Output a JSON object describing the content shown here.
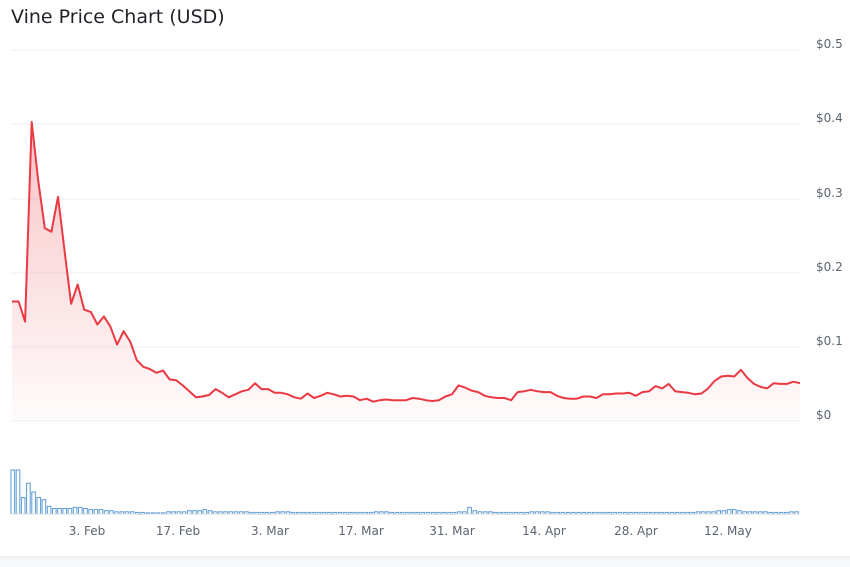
{
  "title": "Vine Price Chart (USD)",
  "chart_data": {
    "type": "area",
    "title": "Vine Price Chart (USD)",
    "xlabel": "",
    "ylabel": "",
    "ylim": [
      0,
      0.5
    ],
    "y_ticks": [
      "$0",
      "$0.1",
      "$0.2",
      "$0.3",
      "$0.4",
      "$0.5"
    ],
    "x_ticks": [
      "3. Feb",
      "17. Feb",
      "3. Mar",
      "17. Mar",
      "31. Mar",
      "14. Apr",
      "28. Apr",
      "12. May"
    ],
    "grid": true,
    "series": [
      {
        "values": [
          0.161,
          0.161,
          0.134,
          0.403,
          0.323,
          0.26,
          0.255,
          0.302,
          0.23,
          0.158,
          0.184,
          0.15,
          0.147,
          0.13,
          0.141,
          0.127,
          0.103,
          0.121,
          0.107,
          0.082,
          0.073,
          0.07,
          0.065,
          0.068,
          0.056,
          0.055,
          0.048,
          0.04,
          0.032,
          0.033,
          0.035,
          0.043,
          0.038,
          0.032,
          0.036,
          0.04,
          0.042,
          0.051,
          0.043,
          0.043,
          0.038,
          0.038,
          0.036,
          0.032,
          0.03,
          0.037,
          0.031,
          0.034,
          0.038,
          0.036,
          0.033,
          0.034,
          0.033,
          0.028,
          0.03,
          0.026,
          0.028,
          0.029,
          0.028,
          0.028,
          0.028,
          0.031,
          0.03,
          0.028,
          0.027,
          0.028,
          0.033,
          0.036,
          0.048,
          0.045,
          0.041,
          0.039,
          0.034,
          0.032,
          0.031,
          0.031,
          0.028,
          0.039,
          0.04,
          0.042,
          0.04,
          0.039,
          0.039,
          0.034,
          0.031,
          0.03,
          0.03,
          0.033,
          0.033,
          0.031,
          0.036,
          0.036,
          0.037,
          0.037,
          0.038,
          0.034,
          0.039,
          0.04,
          0.047,
          0.044,
          0.05,
          0.04,
          0.039,
          0.038,
          0.036,
          0.037,
          0.044,
          0.054,
          0.06,
          0.061,
          0.06,
          0.069,
          0.058,
          0.05,
          0.046,
          0.044,
          0.051,
          0.05,
          0.05,
          0.053,
          0.051
        ],
        "color": "#ea3943"
      },
      {
        "values": [
          40,
          40,
          15,
          28,
          20,
          15,
          13,
          7,
          5,
          5,
          5,
          5,
          6,
          6,
          5,
          4,
          4,
          4,
          3,
          3,
          2,
          2,
          2,
          2,
          1.5,
          1.5,
          1,
          1,
          1,
          1,
          2,
          2,
          2,
          2,
          3,
          3,
          3,
          4,
          3,
          2,
          2,
          2,
          2,
          2,
          2,
          2,
          1.5,
          1.5,
          1.5,
          1.5,
          1.5,
          2,
          2,
          2,
          1.5,
          1.5,
          1.5,
          1.5,
          1.5,
          1.5,
          1.5,
          1.5,
          1.5,
          1.5,
          1.5,
          1.5,
          1.5,
          1.5,
          1.5,
          1.5,
          2,
          2,
          2,
          1.5,
          1.5,
          1.5,
          1.5,
          1.5,
          1.5,
          1.5,
          1.5,
          1.5,
          1.5,
          1.5,
          1.5,
          1.5,
          2,
          2,
          6,
          3,
          2,
          2,
          2,
          1.5,
          1.5,
          1.5,
          1.5,
          1.5,
          1.5,
          1.5,
          2,
          2,
          2,
          2,
          1.5,
          1.5,
          1.5,
          1.5,
          1.5,
          1.5,
          1.5,
          1.5,
          1.5,
          1.5,
          1.5,
          1.5,
          1.5,
          1.5,
          1.5,
          1.5,
          1.5,
          1.5,
          1.5,
          1.5,
          1.5,
          1.5,
          1.5,
          1.5,
          1.5,
          1.5,
          1.5,
          1.5,
          2,
          2,
          2,
          2,
          3,
          3,
          4,
          4,
          3,
          2,
          2,
          2,
          2,
          2,
          1.5,
          1.5,
          1.5,
          1.5,
          2,
          2
        ],
        "color": "#5b9bd5"
      }
    ]
  }
}
